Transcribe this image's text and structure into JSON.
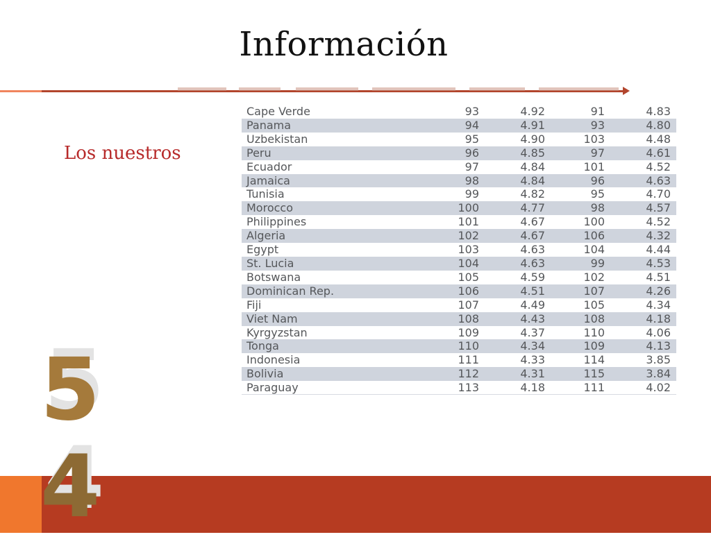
{
  "slide": {
    "title": "Información",
    "subtitle": "Los nuestros"
  },
  "page_number": [
    "5",
    "4"
  ],
  "colors": {
    "title": "#111111",
    "subtitle": "#b72a2a",
    "rule": "#b2452d",
    "footer_band": "#b63b21",
    "footer_accent": "#f0772d",
    "row_stripe": "#cfd4dd",
    "table_text": "#55575a",
    "page_number": "#a57a3b"
  },
  "table": {
    "rows": [
      [
        "Cape Verde",
        "93",
        "4.92",
        "91",
        "4.83"
      ],
      [
        "Panama",
        "94",
        "4.91",
        "93",
        "4.80"
      ],
      [
        "Uzbekistan",
        "95",
        "4.90",
        "103",
        "4.48"
      ],
      [
        "Peru",
        "96",
        "4.85",
        "97",
        "4.61"
      ],
      [
        "Ecuador",
        "97",
        "4.84",
        "101",
        "4.52"
      ],
      [
        "Jamaica",
        "98",
        "4.84",
        "96",
        "4.63"
      ],
      [
        "Tunisia",
        "99",
        "4.82",
        "95",
        "4.70"
      ],
      [
        "Morocco",
        "100",
        "4.77",
        "98",
        "4.57"
      ],
      [
        "Philippines",
        "101",
        "4.67",
        "100",
        "4.52"
      ],
      [
        "Algeria",
        "102",
        "4.67",
        "106",
        "4.32"
      ],
      [
        "Egypt",
        "103",
        "4.63",
        "104",
        "4.44"
      ],
      [
        "St. Lucia",
        "104",
        "4.63",
        "99",
        "4.53"
      ],
      [
        "Botswana",
        "105",
        "4.59",
        "102",
        "4.51"
      ],
      [
        "Dominican Rep.",
        "106",
        "4.51",
        "107",
        "4.26"
      ],
      [
        "Fiji",
        "107",
        "4.49",
        "105",
        "4.34"
      ],
      [
        "Viet Nam",
        "108",
        "4.43",
        "108",
        "4.18"
      ],
      [
        "Kyrgyzstan",
        "109",
        "4.37",
        "110",
        "4.06"
      ],
      [
        "Tonga",
        "110",
        "4.34",
        "109",
        "4.13"
      ],
      [
        "Indonesia",
        "111",
        "4.33",
        "114",
        "3.85"
      ],
      [
        "Bolivia",
        "112",
        "4.31",
        "115",
        "3.84"
      ],
      [
        "Paraguay",
        "113",
        "4.18",
        "111",
        "4.02"
      ]
    ]
  }
}
